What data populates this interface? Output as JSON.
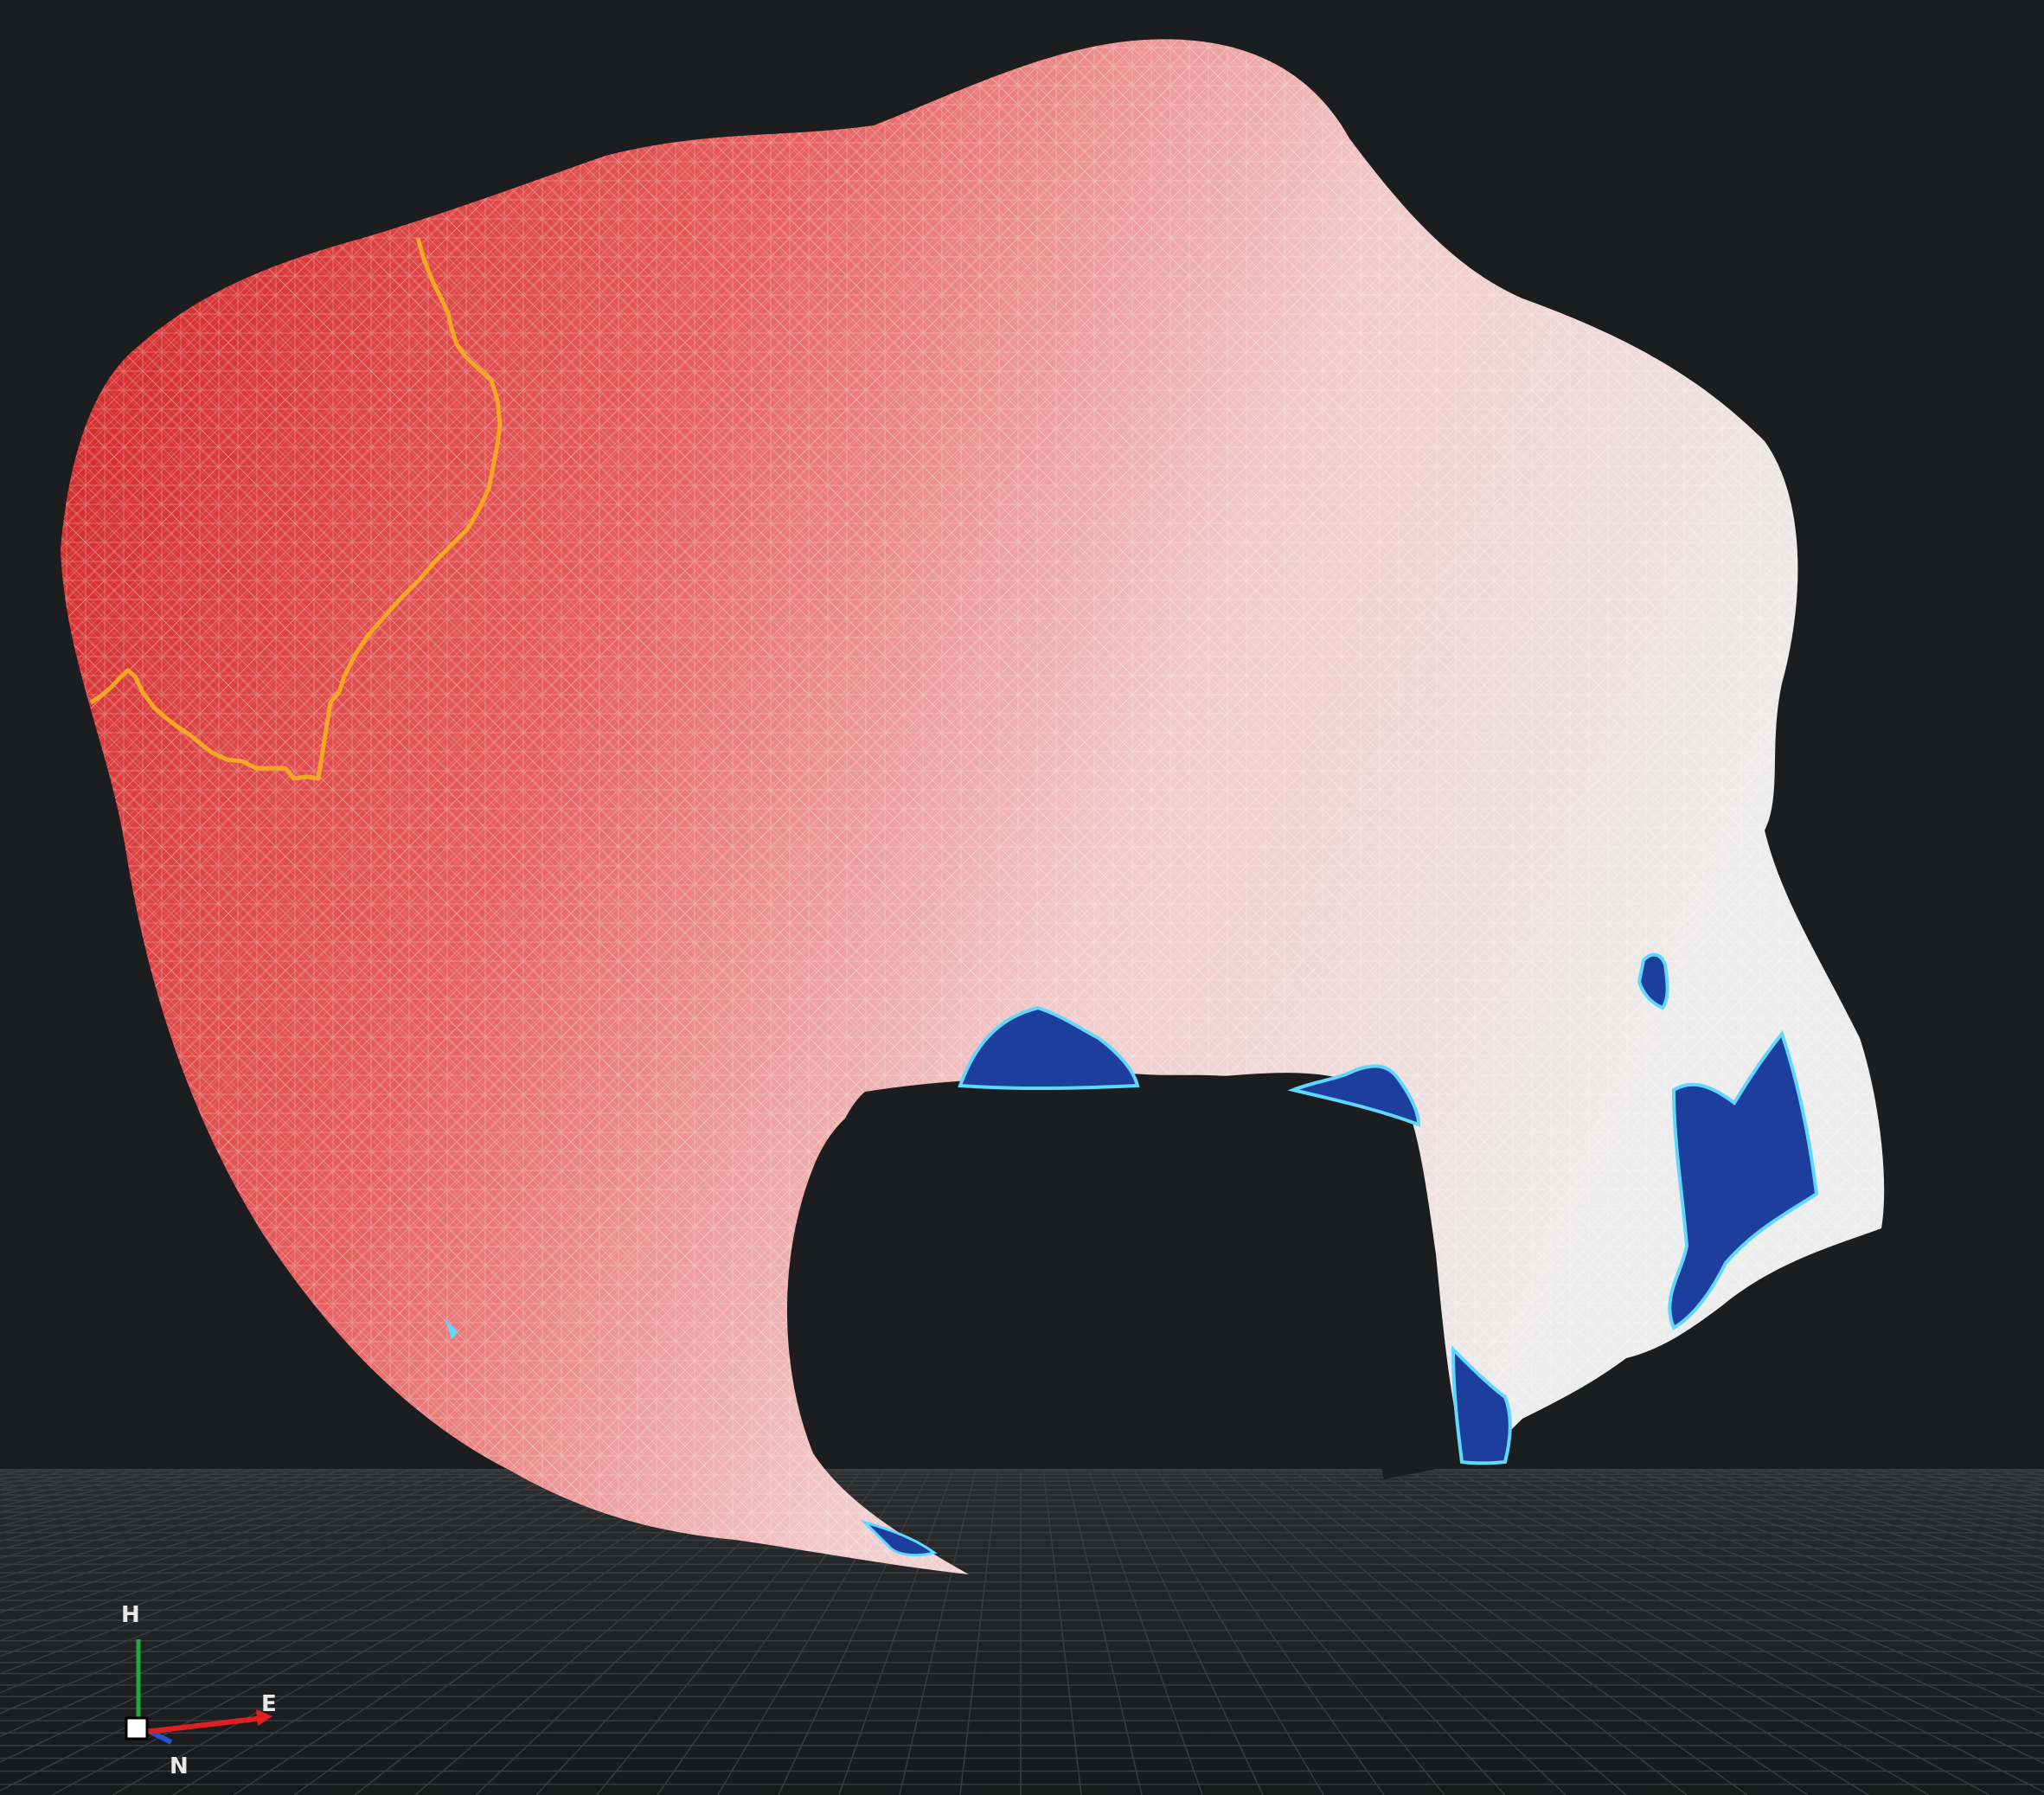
{
  "viewer": {
    "background_color": "#1b1d1e",
    "ground_grid_color": "#3a3c3e",
    "mesh": {
      "gradient_colors": [
        "#cf1f1f",
        "#e65d5d",
        "#f1c9c9",
        "#ececec"
      ],
      "highlight_region_color": "#1c3f9e",
      "highlight_edge_color": "#5fd7ff",
      "boundary_line_color": "#f5a623"
    }
  },
  "axis_gizmo": {
    "up_label": "H",
    "east_label": "E",
    "north_label": "N",
    "up_color": "#1faa3c",
    "east_color": "#e02020",
    "north_color": "#2a4fd0",
    "origin_color": "#ffffff"
  }
}
